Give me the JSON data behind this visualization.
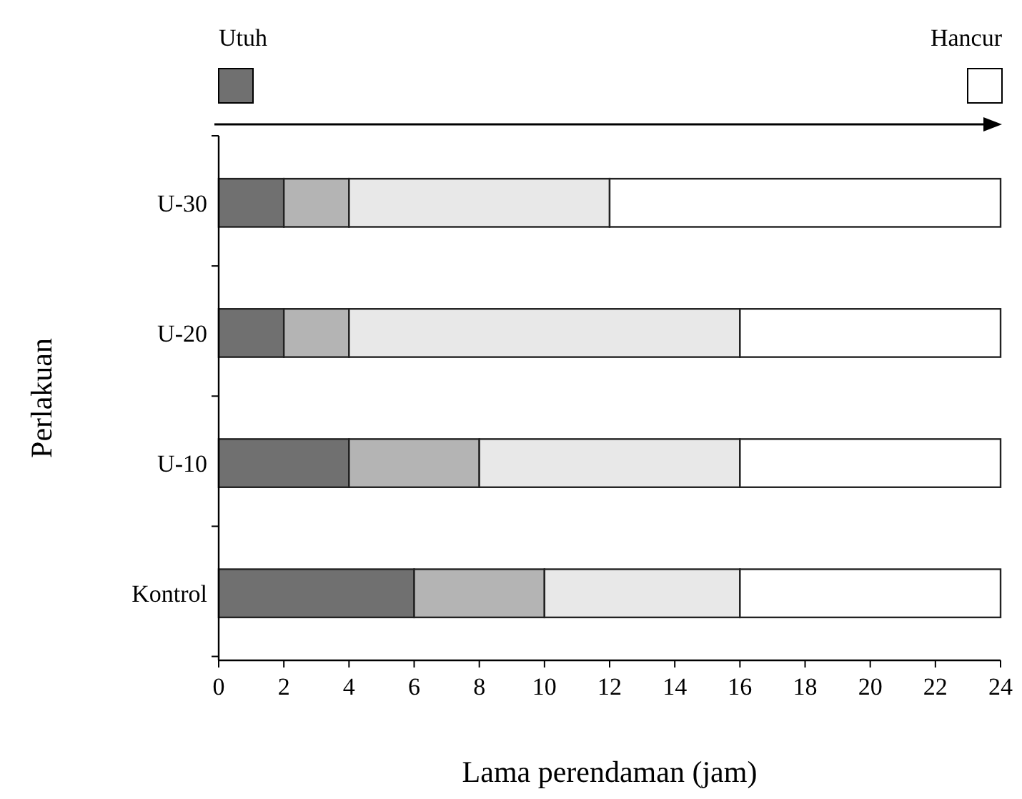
{
  "chart_data": {
    "type": "bar",
    "orientation": "horizontal",
    "stacked": true,
    "xlabel": "Lama perendaman (jam)",
    "ylabel": "Perlakuan",
    "categories": [
      "U-30",
      "U-20",
      "U-10",
      "Kontrol"
    ],
    "series": [
      {
        "color": "#707070",
        "values": [
          2,
          2,
          4,
          6
        ]
      },
      {
        "color": "#b4b4b4",
        "values": [
          2,
          2,
          4,
          4
        ]
      },
      {
        "color": "#e8e8e8",
        "values": [
          8,
          12,
          8,
          6
        ]
      },
      {
        "color": "#ffffff",
        "values": [
          12,
          8,
          8,
          8
        ]
      }
    ],
    "annotations": [
      "Utuh",
      "Hancur"
    ],
    "xlim": [
      0,
      24
    ],
    "xticks": [
      0,
      2,
      4,
      6,
      8,
      10,
      12,
      14,
      16,
      18,
      20,
      22,
      24
    ]
  }
}
